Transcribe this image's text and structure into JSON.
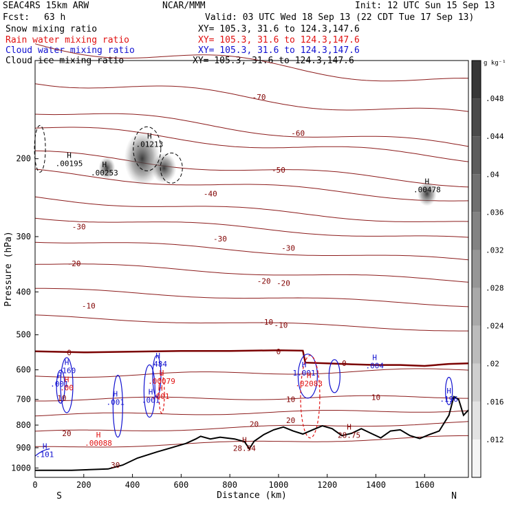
{
  "header": {
    "model": "SEAC4RS 15km ARW",
    "center": "NCAR/MMM",
    "init": "Init: 12 UTC Sun 15 Sep 13",
    "fcst": "Fcst:",
    "fcst_value": "63 h",
    "valid": "Valid: 03 UTC Wed 18 Sep 13 (22 CDT Tue 17 Sep 13)",
    "fields": [
      {
        "name": "Snow mixing ratio",
        "xy": "XY= 105.3, 31.6 to 124.3,147.6",
        "color": "#000000"
      },
      {
        "name": "Rain water mixing ratio",
        "xy": "XY= 105.3, 31.6 to 124.3,147.6",
        "color": "#e01010"
      },
      {
        "name": "Cloud water mixing ratio",
        "xy": "XY= 105.3, 31.6 to 124.3,147.6",
        "color": "#1010d0"
      },
      {
        "name": "Cloud ice mixing ratio",
        "xy": "XY= 105.3, 31.6 to 124.3,147.6",
        "color": "#000000"
      }
    ]
  },
  "chart_data": {
    "type": "cross-section",
    "xlabel": "Distance (km)",
    "ylabel": "Pressure (hPa)",
    "xlim": [
      0,
      1780
    ],
    "ylim": [
      1050,
      120
    ],
    "y_scale": "log",
    "x_ticks": [
      "0",
      "200",
      "400",
      "600",
      "800",
      "1000",
      "1200",
      "1400",
      "1600"
    ],
    "y_ticks": [
      "200",
      "300",
      "400",
      "500",
      "600",
      "700",
      "800",
      "900",
      "1000"
    ],
    "endpoint_labels": {
      "left": "S",
      "right": "N"
    },
    "colorbar": {
      "unit": "g kg⁻¹",
      "ticks": [
        ".012",
        ".016",
        ".02",
        ".024",
        ".028",
        ".032",
        ".036",
        ".04",
        ".044",
        ".048"
      ]
    },
    "temperature_contours": [
      {
        "label": "-70",
        "x": 920,
        "p": 145
      },
      {
        "label": "-60",
        "x": 1080,
        "p": 175
      },
      {
        "label": "-50",
        "x": 1000,
        "p": 212
      },
      {
        "label": "-40",
        "x": 720,
        "p": 240
      },
      {
        "label": "-30",
        "x": 180,
        "p": 285
      },
      {
        "label": "-30",
        "x": 760,
        "p": 303
      },
      {
        "label": "-30",
        "x": 1040,
        "p": 318
      },
      {
        "label": "-20",
        "x": 160,
        "p": 345
      },
      {
        "label": "-20",
        "x": 940,
        "p": 378
      },
      {
        "label": "-20",
        "x": 1020,
        "p": 382
      },
      {
        "label": "-10",
        "x": 220,
        "p": 430
      },
      {
        "label": "-10",
        "x": 950,
        "p": 468
      },
      {
        "label": "-10",
        "x": 1010,
        "p": 475
      },
      {
        "label": "0",
        "x": 140,
        "p": 548
      },
      {
        "label": "0",
        "x": 1000,
        "p": 545
      },
      {
        "label": "0",
        "x": 1270,
        "p": 580
      },
      {
        "label": "10",
        "x": 110,
        "p": 695
      },
      {
        "label": "10",
        "x": 1050,
        "p": 700
      },
      {
        "label": "10",
        "x": 1400,
        "p": 692
      },
      {
        "label": "20",
        "x": 130,
        "p": 835
      },
      {
        "label": "20",
        "x": 900,
        "p": 795
      },
      {
        "label": "20",
        "x": 1050,
        "p": 780
      },
      {
        "label": "30",
        "x": 330,
        "p": 985
      }
    ],
    "max_labels": [
      {
        "label": ".00195",
        "x": 140,
        "p": 208,
        "color": "#000000"
      },
      {
        "label": ".00253",
        "x": 285,
        "p": 218,
        "color": "#000000"
      },
      {
        "label": ".01213",
        "x": 470,
        "p": 188,
        "color": "#000000"
      },
      {
        "label": ".00478",
        "x": 1610,
        "p": 238,
        "color": "#000000"
      },
      {
        "label": ".160",
        "x": 130,
        "p": 610,
        "color": "#1010d0"
      },
      {
        "label": ".001",
        "x": 100,
        "p": 655,
        "color": "#1010d0"
      },
      {
        "label": ".00",
        "x": 130,
        "p": 668,
        "color": "#e01010"
      },
      {
        "label": ".484",
        "x": 505,
        "p": 590,
        "color": "#1010d0"
      },
      {
        "label": ".00079",
        "x": 520,
        "p": 645,
        "color": "#e01010"
      },
      {
        "label": ".001",
        "x": 330,
        "p": 720,
        "color": "#1010d0"
      },
      {
        "label": ".001",
        "x": 475,
        "p": 712,
        "color": "#1010d0"
      },
      {
        "label": ".001",
        "x": 515,
        "p": 698,
        "color": "#e01010"
      },
      {
        "label": "1.001",
        "x": 1105,
        "p": 618,
        "color": "#1010d0"
      },
      {
        "label": ".02083",
        "x": 1125,
        "p": 653,
        "color": "#e01010"
      },
      {
        "label": ".004",
        "x": 1395,
        "p": 595,
        "color": "#1010d0"
      },
      {
        "label": ".196",
        "x": 1700,
        "p": 708,
        "color": "#1010d0"
      },
      {
        "label": ".101",
        "x": 40,
        "p": 945,
        "color": "#1010d0"
      },
      {
        "label": ".00088",
        "x": 260,
        "p": 890,
        "color": "#e01010"
      },
      {
        "label": "28.94",
        "x": 860,
        "p": 915,
        "color": "#800000"
      },
      {
        "label": "28.75",
        "x": 1290,
        "p": 855,
        "color": "#800000"
      }
    ]
  }
}
